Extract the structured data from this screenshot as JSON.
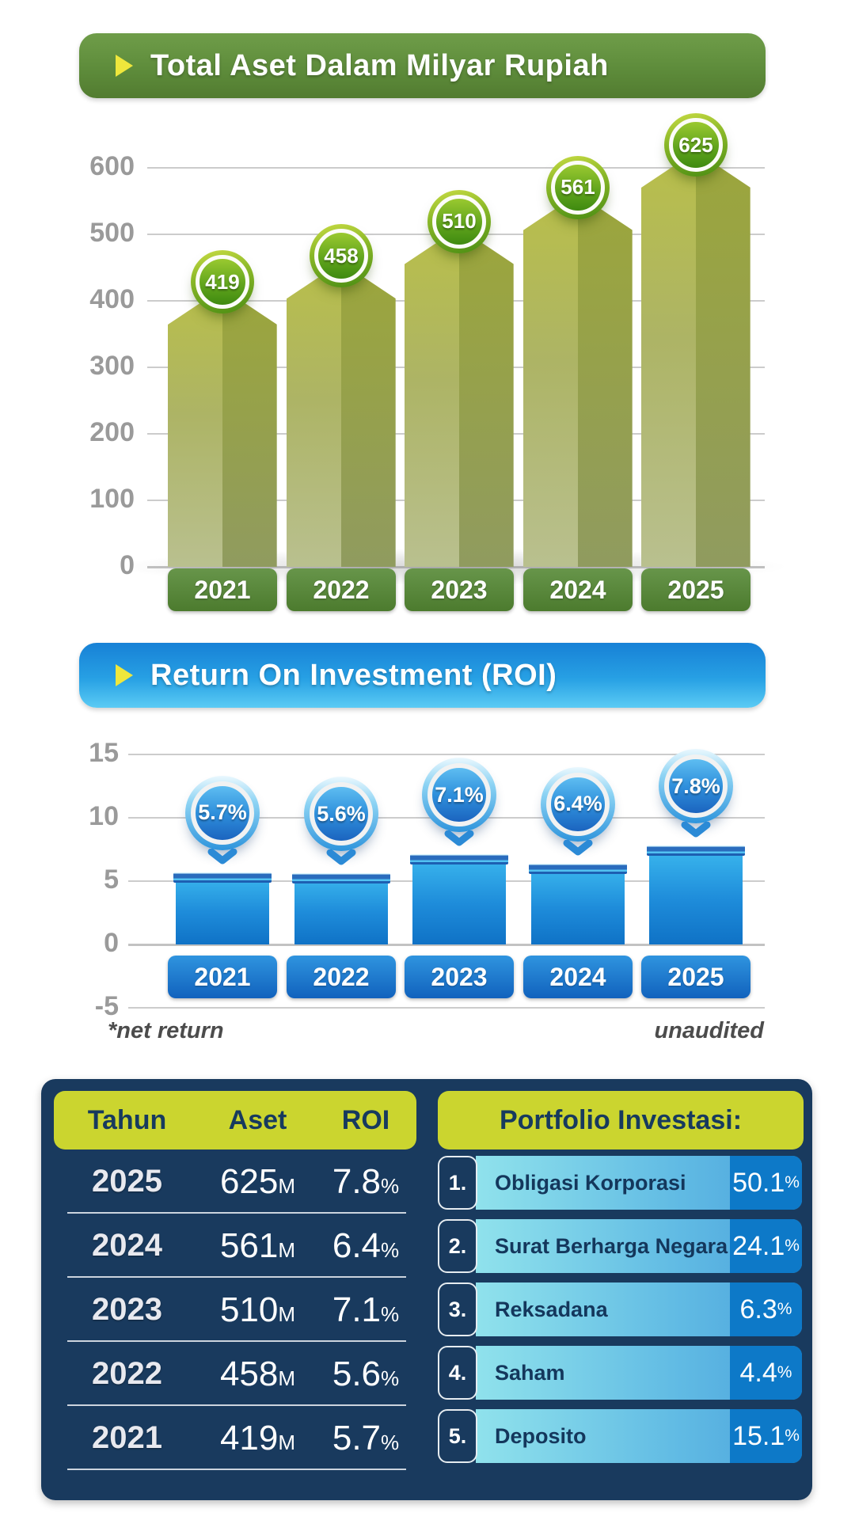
{
  "colors": {
    "banner_green": "#5e8c3b",
    "banner_blue": "#27a0e4",
    "bullet_yellow": "#efe73c",
    "bar_olive_light": "#b0b75f",
    "bar_olive_dark": "#97a144",
    "badge_green": "#4b8d13",
    "bar_blue_top": "#3cb9ef",
    "bar_blue_bottom": "#0f72c6",
    "badge_blue": "#2e94dc",
    "grid_gray": "#cccccc",
    "tick_gray": "#9a9a9a",
    "panel_navy": "#193a5e",
    "header_yellow": "#cbd52f",
    "portfolio_pct_blue": "#0d79c8"
  },
  "chart_data": [
    {
      "type": "bar",
      "title": "Total Aset Dalam Milyar Rupiah",
      "categories": [
        "2021",
        "2022",
        "2023",
        "2024",
        "2025"
      ],
      "values": [
        419,
        458,
        510,
        561,
        625
      ],
      "value_labels": [
        "419",
        "458",
        "510",
        "561",
        "625"
      ],
      "xlabel": "",
      "ylabel": "",
      "ylim": [
        0,
        650
      ],
      "yticks": [
        0,
        100,
        200,
        300,
        400,
        500,
        600
      ],
      "grid": true,
      "legend": "none"
    },
    {
      "type": "bar",
      "title": "Return On Investment (ROI)",
      "categories": [
        "2021",
        "2022",
        "2023",
        "2024",
        "2025"
      ],
      "values": [
        5.7,
        5.6,
        7.1,
        6.4,
        7.8
      ],
      "value_labels": [
        "5.7%",
        "5.6%",
        "7.1%",
        "6.4%",
        "7.8%"
      ],
      "xlabel": "",
      "ylabel": "",
      "ylim": [
        -5,
        15
      ],
      "yticks": [
        -5,
        0,
        5,
        10,
        15
      ],
      "grid": true,
      "legend": "none",
      "footnote_left": "*net return",
      "footnote_right": "unaudited"
    },
    {
      "type": "table",
      "headers": [
        "Tahun",
        "Aset",
        "ROI"
      ],
      "rows": [
        {
          "year": "2025",
          "asset": "625M",
          "roi": "7.8%"
        },
        {
          "year": "2024",
          "asset": "561M",
          "roi": "6.4%"
        },
        {
          "year": "2023",
          "asset": "510M",
          "roi": "7.1%"
        },
        {
          "year": "2022",
          "asset": "458M",
          "roi": "5.6%"
        },
        {
          "year": "2021",
          "asset": "419M",
          "roi": "5.7%"
        }
      ]
    },
    {
      "type": "table",
      "title": "Portfolio Investasi:",
      "rows": [
        {
          "rank": "1.",
          "label": "Obligasi Korporasi",
          "value": "50.1%"
        },
        {
          "rank": "2.",
          "label": "Surat Berharga Negara",
          "value": "24.1%"
        },
        {
          "rank": "3.",
          "label": "Reksadana",
          "value": "6.3%"
        },
        {
          "rank": "4.",
          "label": "Saham",
          "value": "4.4%"
        },
        {
          "rank": "5.",
          "label": "Deposito",
          "value": "15.1%"
        }
      ]
    }
  ]
}
